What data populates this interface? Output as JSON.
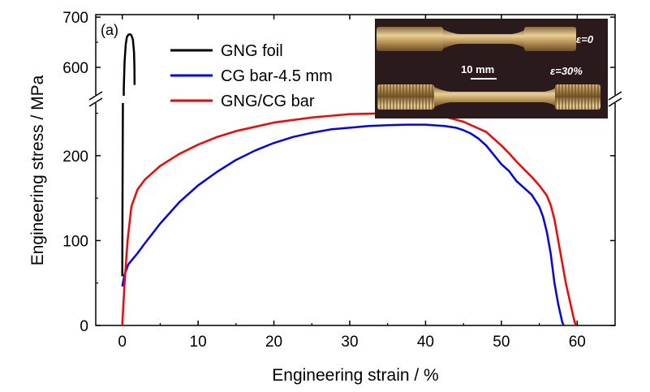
{
  "chart_data": {
    "type": "line",
    "panel_label": "(a)",
    "xlabel": "Engineering strain / %",
    "ylabel": "Engineering stress / MPa",
    "xlim": [
      -3.5,
      65
    ],
    "ylim_lower": [
      0,
      262
    ],
    "ylim_upper": [
      545,
      705
    ],
    "axis_break": true,
    "x_ticks": [
      "0",
      "10",
      "20",
      "30",
      "40",
      "50",
      "60"
    ],
    "y_ticks_lower": [
      "0",
      "100",
      "200"
    ],
    "y_ticks_upper": [
      "600",
      "700"
    ],
    "legend_position": "top-left",
    "series": [
      {
        "name": "GNG foil",
        "color": "#000000",
        "points": [
          [
            0.0,
            58
          ],
          [
            0.02,
            120
          ],
          [
            0.05,
            200
          ],
          [
            0.08,
            262
          ],
          [
            0.2,
            560
          ],
          [
            0.3,
            610
          ],
          [
            0.45,
            645
          ],
          [
            0.6,
            660
          ],
          [
            0.8,
            665
          ],
          [
            1.0,
            666
          ],
          [
            1.2,
            664
          ],
          [
            1.4,
            655
          ],
          [
            1.55,
            630
          ],
          [
            1.6,
            600
          ],
          [
            1.62,
            565
          ]
        ]
      },
      {
        "name": "CG bar-4.5 mm",
        "color": "#0000ff",
        "points": [
          [
            0,
            46
          ],
          [
            0.3,
            60
          ],
          [
            0.8,
            72
          ],
          [
            2,
            85
          ],
          [
            3,
            97
          ],
          [
            5,
            120
          ],
          [
            7.5,
            145
          ],
          [
            10,
            165
          ],
          [
            12.5,
            181
          ],
          [
            15,
            195
          ],
          [
            17.5,
            206
          ],
          [
            20,
            215
          ],
          [
            22.5,
            222
          ],
          [
            25,
            227
          ],
          [
            27.5,
            231
          ],
          [
            30,
            233
          ],
          [
            32.5,
            235
          ],
          [
            35,
            236
          ],
          [
            37.5,
            236.5
          ],
          [
            40,
            236.5
          ],
          [
            42.5,
            235
          ],
          [
            44,
            233
          ],
          [
            45,
            230
          ],
          [
            46,
            226
          ],
          [
            47,
            220
          ],
          [
            48,
            212
          ],
          [
            49,
            201
          ],
          [
            50,
            190
          ],
          [
            51,
            182
          ],
          [
            52,
            170
          ],
          [
            53,
            162
          ],
          [
            54,
            154
          ],
          [
            54.5,
            147
          ],
          [
            55,
            140
          ],
          [
            55.5,
            128
          ],
          [
            56,
            110
          ],
          [
            56.5,
            85
          ],
          [
            57,
            50
          ],
          [
            57.5,
            25
          ],
          [
            58,
            5
          ],
          [
            58.2,
            0
          ]
        ]
      },
      {
        "name": "GNG/CG bar",
        "color": "#ff0000",
        "points": [
          [
            0,
            0
          ],
          [
            0.3,
            50
          ],
          [
            0.7,
            100
          ],
          [
            1.2,
            140
          ],
          [
            2,
            160
          ],
          [
            3,
            172
          ],
          [
            5,
            188
          ],
          [
            7.5,
            202
          ],
          [
            10,
            213
          ],
          [
            12.5,
            222
          ],
          [
            15,
            229
          ],
          [
            17.5,
            234
          ],
          [
            20,
            239
          ],
          [
            22.5,
            242
          ],
          [
            25,
            245
          ],
          [
            27.5,
            247
          ],
          [
            30,
            249
          ],
          [
            32.5,
            249.5
          ],
          [
            35,
            250
          ],
          [
            37.5,
            249
          ],
          [
            40,
            248
          ],
          [
            42.5,
            246
          ],
          [
            45,
            240
          ],
          [
            47,
            232
          ],
          [
            48,
            228
          ],
          [
            49,
            220
          ],
          [
            50,
            212
          ],
          [
            51,
            203
          ],
          [
            52,
            193
          ],
          [
            53,
            184
          ],
          [
            54,
            175
          ],
          [
            55,
            165
          ],
          [
            56,
            153
          ],
          [
            56.5,
            142
          ],
          [
            57,
            125
          ],
          [
            57.5,
            100
          ],
          [
            58,
            75
          ],
          [
            58.5,
            50
          ],
          [
            59,
            30
          ],
          [
            59.5,
            10
          ],
          [
            59.8,
            0
          ]
        ]
      }
    ],
    "inset": {
      "label_top": "ε=0",
      "label_bottom": "ε=30%",
      "scale_bar": "10 mm"
    }
  }
}
